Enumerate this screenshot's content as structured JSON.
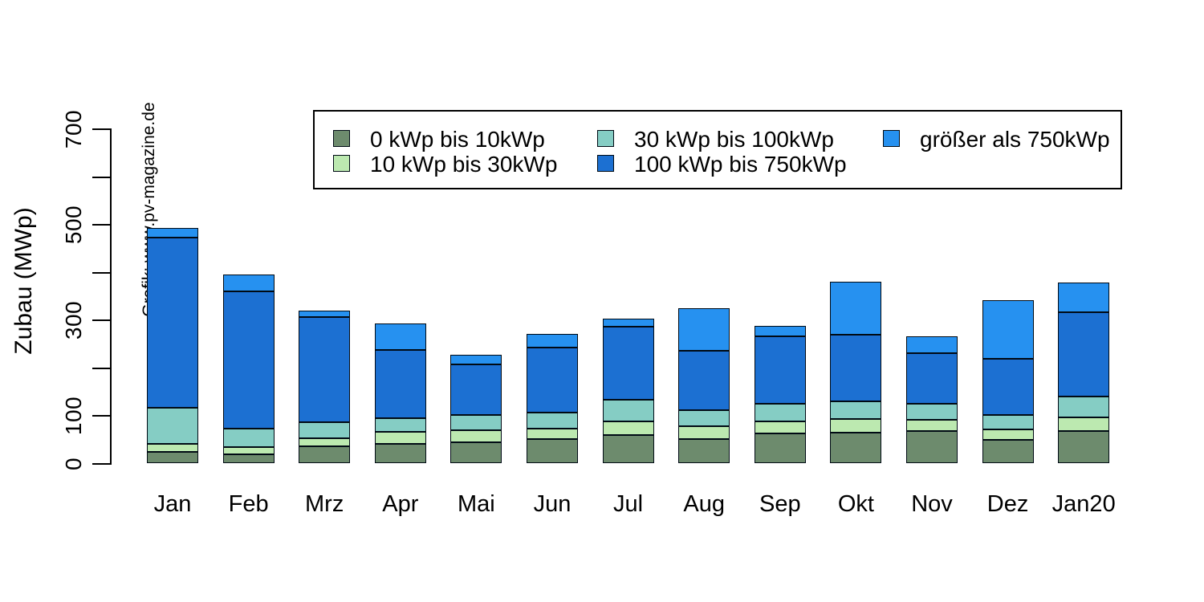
{
  "chart_data": {
    "type": "bar",
    "stacked": true,
    "ylabel": "Zubau (MWp)",
    "watermark": "Grafik: www.pv-magazine.de",
    "categories": [
      "Jan",
      "Feb",
      "Mrz",
      "Apr",
      "Mai",
      "Jun",
      "Jul",
      "Aug",
      "Sep",
      "Okt",
      "Nov",
      "Dez",
      "Jan20"
    ],
    "series": [
      {
        "name": "0 kWp bis 10kWp",
        "color": "#6d8b6d",
        "values": [
          24,
          19,
          35,
          41,
          43,
          50,
          58,
          50,
          62,
          63,
          67,
          48,
          67
        ]
      },
      {
        "name": "10 kWp bis 30kWp",
        "color": "#bce9b0",
        "values": [
          16,
          14,
          17,
          24,
          25,
          22,
          29,
          27,
          25,
          29,
          23,
          22,
          28
        ]
      },
      {
        "name": "30 kWp bis 100kWp",
        "color": "#85cdc4",
        "values": [
          76,
          40,
          33,
          29,
          32,
          33,
          45,
          33,
          37,
          38,
          35,
          30,
          45
        ]
      },
      {
        "name": "100 kWp bis 750kWp",
        "color": "#1c70d2",
        "values": [
          356,
          286,
          220,
          142,
          106,
          136,
          153,
          125,
          141,
          139,
          105,
          118,
          175
        ]
      },
      {
        "name": "größer als 750kWp",
        "color": "#2691f0",
        "values": [
          20,
          35,
          14,
          56,
          20,
          30,
          17,
          89,
          22,
          110,
          35,
          123,
          63
        ]
      }
    ],
    "totals": [
      492,
      394,
      319,
      292,
      226,
      271,
      302,
      324,
      287,
      379,
      265,
      341,
      378
    ],
    "ylim": [
      0,
      700
    ],
    "yticks": [
      0,
      100,
      200,
      300,
      400,
      500,
      600,
      700
    ],
    "ytick_labeled": [
      0,
      100,
      300,
      500,
      700
    ],
    "grid": false,
    "legend_position": "top",
    "axis_color": "#000000",
    "bar_border_color": "#000a14",
    "background_color": "#ffffff"
  }
}
